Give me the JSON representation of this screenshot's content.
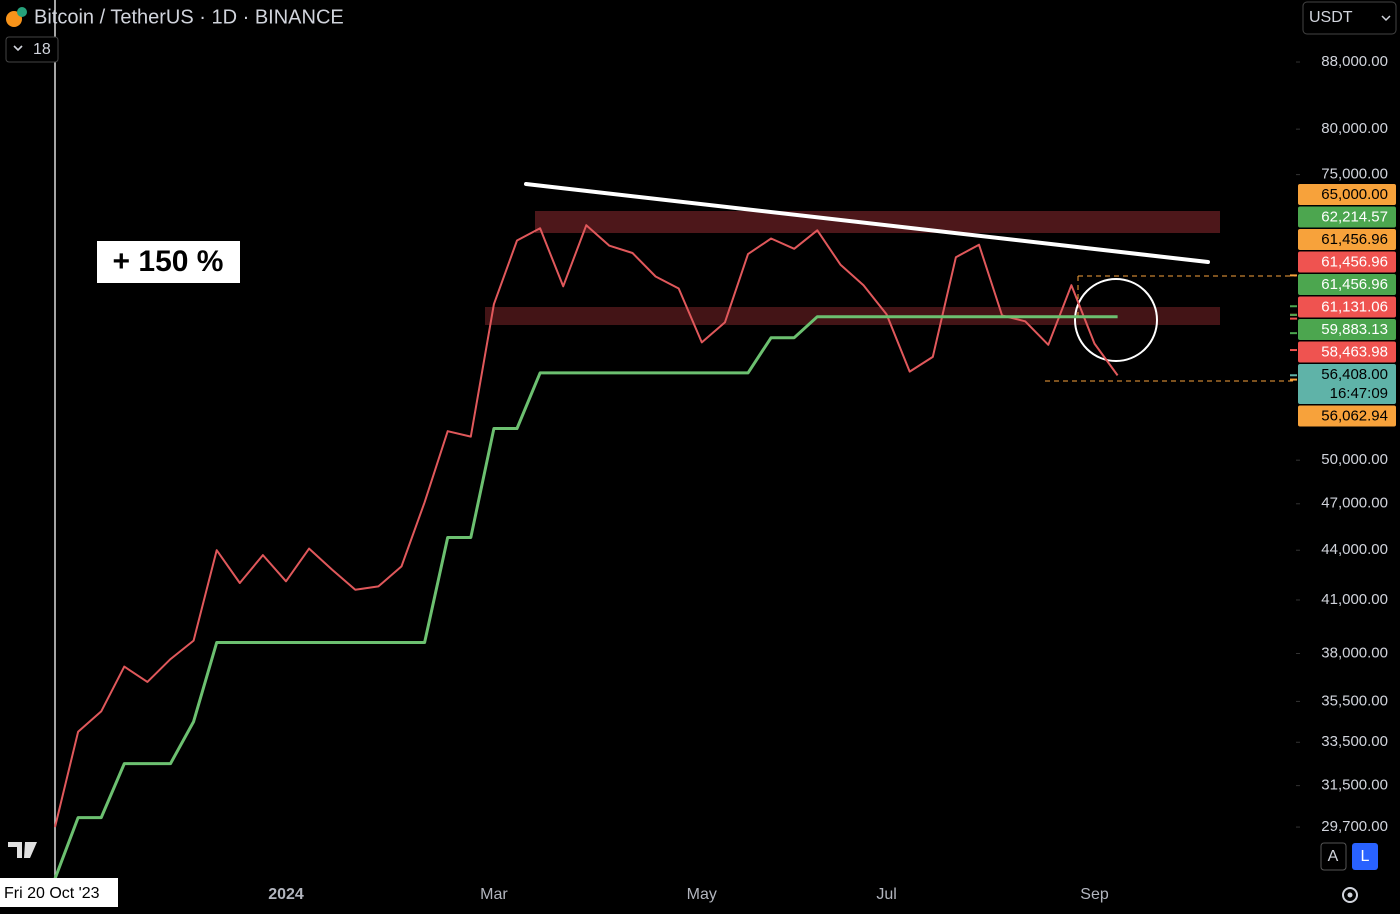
{
  "chart_data": {
    "type": "line",
    "title": "Bitcoin / TetherUS · 1D · BINANCE",
    "annotation": "+ 150 %",
    "log_scale": true,
    "grid": false,
    "ylim": [
      27550,
      96100
    ],
    "yticks": [
      {
        "value": 29700,
        "label": "29,700.00"
      },
      {
        "value": 31500,
        "label": "31,500.00"
      },
      {
        "value": 33500,
        "label": "33,500.00"
      },
      {
        "value": 35500,
        "label": "35,500.00"
      },
      {
        "value": 38000,
        "label": "38,000.00"
      },
      {
        "value": 41000,
        "label": "41,000.00"
      },
      {
        "value": 44000,
        "label": "44,000.00"
      },
      {
        "value": 47000,
        "label": "47,000.00"
      },
      {
        "value": 50000,
        "label": "50,000.00"
      },
      {
        "value": 75000,
        "label": "75,000.00"
      },
      {
        "value": 80000,
        "label": "80,000.00"
      },
      {
        "value": 88000,
        "label": "88,000.00"
      }
    ],
    "categories": [
      null,
      null,
      null,
      null,
      null,
      null,
      null,
      null,
      null,
      null,
      "2024",
      null,
      null,
      null,
      null,
      null,
      null,
      null,
      null,
      "Mar",
      null,
      null,
      null,
      null,
      null,
      null,
      null,
      null,
      "May",
      null,
      null,
      null,
      null,
      null,
      null,
      null,
      "Jul",
      null,
      null,
      null,
      null,
      null,
      null,
      null,
      null,
      "Sep",
      null,
      null,
      null,
      null,
      null,
      null,
      null,
      null
    ],
    "series": [
      {
        "color": "#e0585b",
        "values": [
          29700,
          34000,
          35000,
          37300,
          36500,
          37700,
          38700,
          44000,
          42000,
          43700,
          42100,
          44100,
          42800,
          41600,
          41800,
          43000,
          47100,
          52100,
          51700,
          62400,
          68300,
          69500,
          64000,
          69800,
          67800,
          67100,
          64900,
          63800,
          59100,
          60800,
          67000,
          68500,
          67500,
          69300,
          66000,
          64100,
          61500,
          56700,
          57900,
          66700,
          67900,
          61400,
          60900,
          58900,
          64100,
          59000,
          56400,
          null,
          null,
          null,
          null,
          null,
          null,
          null
        ]
      },
      {
        "color": "#6cc070",
        "values": [
          27600,
          30100,
          30100,
          32500,
          32500,
          32500,
          34500,
          38600,
          38600,
          38600,
          38600,
          38600,
          38600,
          38600,
          38600,
          38600,
          38600,
          44800,
          44800,
          52300,
          52300,
          56600,
          56600,
          56600,
          56600,
          56600,
          56600,
          56600,
          56600,
          56600,
          56600,
          59500,
          59500,
          61300,
          61300,
          61300,
          61300,
          61300,
          61300,
          61300,
          61300,
          61300,
          61300,
          61300,
          61300,
          61300,
          61300,
          null,
          null,
          null,
          null,
          null,
          null,
          null
        ]
      }
    ],
    "price_labels": [
      {
        "value": 65000,
        "label": "65,000.00",
        "color": "#f7a23b"
      },
      {
        "value": 62214.57,
        "label": "62,214.57",
        "color": "#4ca64f"
      },
      {
        "value": 61456.96,
        "label": "61,456.96",
        "color": "#f7a23b"
      },
      {
        "value": 61456.96,
        "label": "61,456.96",
        "color": "#ef5350"
      },
      {
        "value": 61456.96,
        "label": "61,456.96",
        "color": "#4ca64f"
      },
      {
        "value": 61131.06,
        "label": "61,131.06",
        "color": "#ef5350"
      },
      {
        "value": 59883.13,
        "label": "59,883.13",
        "color": "#4ca64f"
      },
      {
        "value": 58463.98,
        "label": "58,463.98",
        "color": "#ef5350"
      },
      {
        "value": 56408,
        "label": "56,408.00",
        "color": "#5fb3a8",
        "countdown": "16:47:09"
      },
      {
        "value": 56062.94,
        "label": "56,062.94",
        "color": "#f7a23b"
      }
    ]
  },
  "toolbar": {
    "interval_count": 18,
    "currency": "USDT",
    "scale_auto": "A",
    "scale_log": "L",
    "crosshair_date": "Fri 20 Oct '23"
  }
}
